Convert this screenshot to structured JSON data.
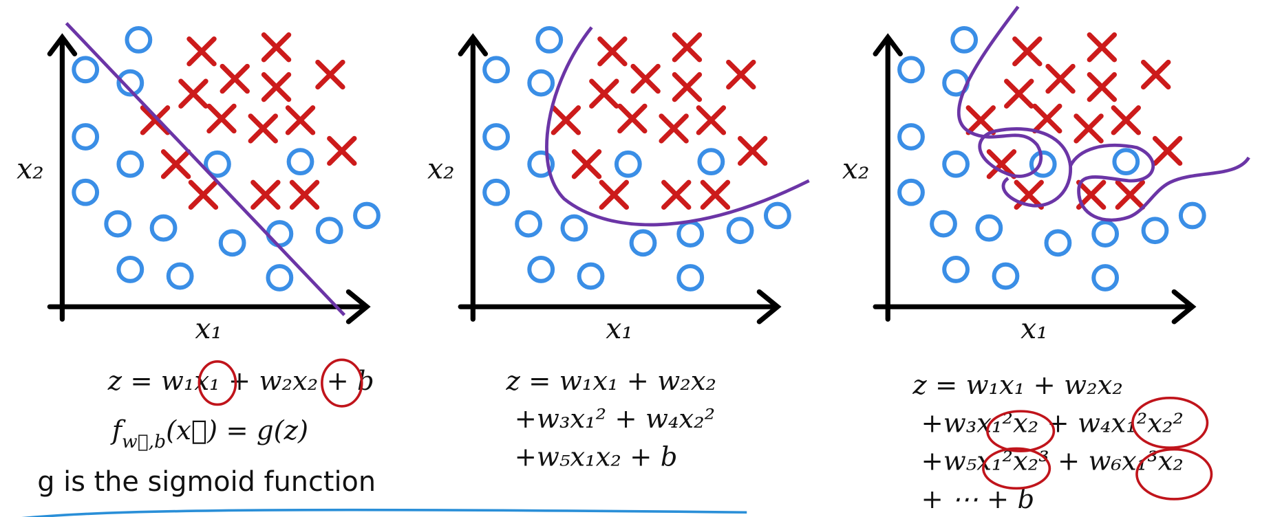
{
  "panels": [
    {
      "x_label": "x₁",
      "y_label": "x₂",
      "equations": [
        "z = w₁x₁ + w₂x₂ + b"
      ]
    },
    {
      "x_label": "x₁",
      "y_label": "x₂",
      "equations": [
        "z = w₁x₁ + w₂x₂",
        "+w₃x₁² + w₄x₂²",
        "+w₅x₁x₂ + b"
      ]
    },
    {
      "x_label": "x₁",
      "y_label": "x₂",
      "equations": [
        "z = w₁x₁ + w₂x₂",
        "+w₃x₁²x₂ + w₄x₁²x₂²",
        "+w₅x₁²x₂³ + w₆x₁³x₂",
        "+ ⋯ + b"
      ]
    }
  ],
  "model": {
    "f": "f",
    "sub": "w⃗,b",
    "rest": "(x⃗) = g(z)"
  },
  "note": "g is the sigmoid function"
}
